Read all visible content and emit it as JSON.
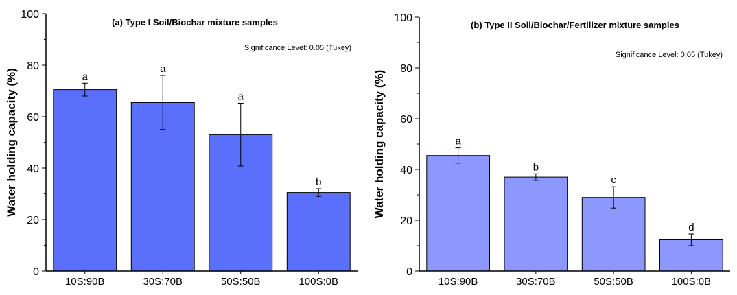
{
  "chart_data": [
    {
      "type": "bar",
      "title": "(a) Type I Soil/Biochar mixture samples",
      "annotation": "Significance Level: 0.05 (Tukey)",
      "ylabel": "Water holding capacity (%)",
      "xlabel": "",
      "categories": [
        "10S:90B",
        "30S:70B",
        "50S:50B",
        "100S:0B"
      ],
      "values": [
        70.5,
        65.5,
        53,
        30.5
      ],
      "errors": [
        2.5,
        10.5,
        12.2,
        1.5
      ],
      "letters": [
        "a",
        "a",
        "a",
        "b"
      ],
      "ylim": [
        0,
        100
      ],
      "yticks": [
        0,
        20,
        40,
        60,
        80,
        100
      ],
      "bar_color": "#5b6ffd",
      "grid": false
    },
    {
      "type": "bar",
      "title": "(b) Type II Soil/Biochar/Fertilizer mixture samples",
      "annotation": "Significance Level: 0.05 (Tukey)",
      "ylabel": "Water holding capacity (%)",
      "xlabel": "",
      "categories": [
        "10S:90B",
        "30S:70B",
        "50S:50B",
        "100S:0B"
      ],
      "values": [
        45.5,
        37,
        29,
        12.3
      ],
      "errors": [
        3,
        1.3,
        4.2,
        2.3
      ],
      "letters": [
        "a",
        "b",
        "c",
        "d"
      ],
      "ylim": [
        0,
        100
      ],
      "yticks": [
        0,
        20,
        40,
        60,
        80,
        100
      ],
      "bar_color": "#8c98fe",
      "grid": false
    }
  ]
}
